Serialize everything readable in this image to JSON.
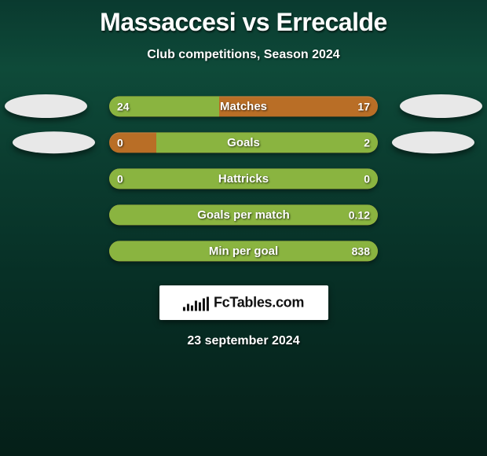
{
  "title_left": "Massaccesi",
  "title_vs": "vs",
  "title_right": "Errecalde",
  "subtitle": "Club competitions, Season 2024",
  "logo_text": "FcTables.com",
  "date": "23 september 2024",
  "colors": {
    "orange": "#b96e26",
    "green": "#8ab440",
    "ellipse": "#e8e8e8",
    "text": "#ffffff"
  },
  "rows": [
    {
      "label": "Matches",
      "left": "24",
      "right": "17",
      "left_pct": 41.0,
      "right_pct": 0,
      "show_ellipse_left": true,
      "show_ellipse_right": true,
      "ellipse_variant": 1
    },
    {
      "label": "Goals",
      "left": "0",
      "right": "2",
      "left_pct": 0,
      "right_pct": 82.5,
      "show_ellipse_left": true,
      "show_ellipse_right": true,
      "ellipse_variant": 2
    },
    {
      "label": "Hattricks",
      "left": "0",
      "right": "0",
      "left_pct": 100,
      "right_pct": 0,
      "full_green": true,
      "show_ellipse_left": false,
      "show_ellipse_right": false
    },
    {
      "label": "Goals per match",
      "left": "",
      "right": "0.12",
      "left_pct": 100,
      "right_pct": 0,
      "full_green": true,
      "show_ellipse_left": false,
      "show_ellipse_right": false
    },
    {
      "label": "Min per goal",
      "left": "",
      "right": "838",
      "left_pct": 100,
      "right_pct": 0,
      "full_green": true,
      "show_ellipse_left": false,
      "show_ellipse_right": false
    }
  ]
}
